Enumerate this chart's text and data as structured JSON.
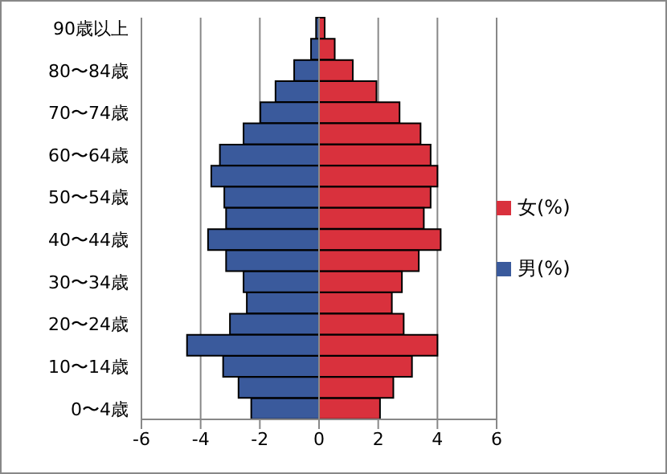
{
  "chart_data": {
    "type": "bar",
    "orientation": "horizontal",
    "stacked": true,
    "categories": [
      "90歳以上",
      null,
      "80〜84歳",
      null,
      "70〜74歳",
      null,
      "60〜64歳",
      null,
      "50〜54歳",
      null,
      "40〜44歳",
      null,
      "30〜34歳",
      null,
      "20〜24歳",
      null,
      "10〜14歳",
      null,
      "0〜4歳"
    ],
    "series": [
      {
        "name": "女(%)",
        "color": "#d9313d",
        "values": [
          0.19,
          0.53,
          1.14,
          1.94,
          2.72,
          3.43,
          3.77,
          4.0,
          3.77,
          3.54,
          4.11,
          3.37,
          2.8,
          2.46,
          2.86,
          4.0,
          3.14,
          2.51,
          2.06
        ]
      },
      {
        "name": "男(%)",
        "color": "#3a5a9c",
        "values": [
          -0.1,
          -0.27,
          -0.84,
          -1.47,
          -1.98,
          -2.55,
          -3.35,
          -3.64,
          -3.2,
          -3.14,
          -3.75,
          -3.14,
          -2.55,
          -2.44,
          -3.01,
          -4.46,
          -3.24,
          -2.72,
          -2.29
        ]
      }
    ],
    "xlim": [
      -6,
      6
    ],
    "xticks": [
      -6,
      -4,
      -2,
      0,
      2,
      4,
      6
    ],
    "grid": "x",
    "legend": "right"
  }
}
